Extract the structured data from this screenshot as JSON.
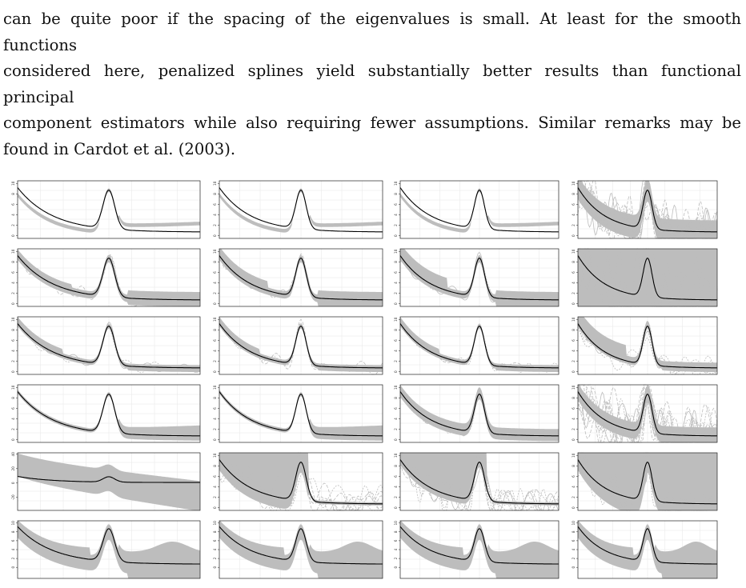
{
  "paragraph": {
    "lines": [
      "can be quite poor if the spacing of the eigenvalues is small. At least for the smooth functions",
      "considered here, penalized splines yield substantially better results than functional principal",
      "component estimators while also requiring fewer assumptions. Similar remarks may be",
      "found in Cardot et al. (2003)."
    ]
  },
  "figure": {
    "rows": 6,
    "cols": 4,
    "truth_color": "#000000",
    "estimate_color": "#bdbdbd",
    "yticks_default": [
      "0",
      "2",
      "4",
      "6",
      "8",
      "10"
    ],
    "yticks_row5_col1": [
      "-20",
      "0",
      "20",
      "40"
    ]
  }
}
